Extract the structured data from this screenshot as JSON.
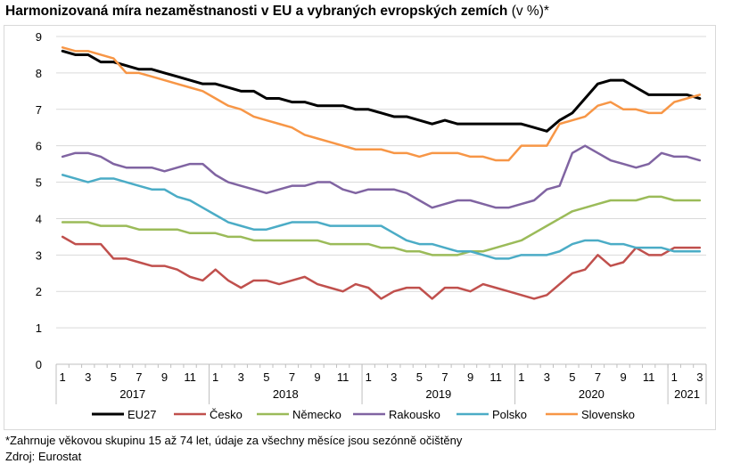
{
  "chart_title": {
    "main": "Harmonizovaná míra nezaměstnanosti v EU a vybraných evropských zemích",
    "unit": "(v %)*"
  },
  "footnote": "*Zahrnuje věkovou skupinu 15 až 74 let, údaje za všechny měsíce jsou sezónně očištěny",
  "source": "Zdroj: Eurostat",
  "chart_data": {
    "type": "line",
    "title": "Harmonizovaná míra nezaměstnanosti v EU a vybraných evropských zemích (v %)*",
    "xlabel": "",
    "ylabel": "",
    "ylim": [
      0,
      9
    ],
    "yticks": [
      0,
      1,
      2,
      3,
      4,
      5,
      6,
      7,
      8,
      9
    ],
    "grid": "horizontal",
    "legend_position": "bottom",
    "x": [
      "2017-01",
      "2017-02",
      "2017-03",
      "2017-04",
      "2017-05",
      "2017-06",
      "2017-07",
      "2017-08",
      "2017-09",
      "2017-10",
      "2017-11",
      "2017-12",
      "2018-01",
      "2018-02",
      "2018-03",
      "2018-04",
      "2018-05",
      "2018-06",
      "2018-07",
      "2018-08",
      "2018-09",
      "2018-10",
      "2018-11",
      "2018-12",
      "2019-01",
      "2019-02",
      "2019-03",
      "2019-04",
      "2019-05",
      "2019-06",
      "2019-07",
      "2019-08",
      "2019-09",
      "2019-10",
      "2019-11",
      "2019-12",
      "2020-01",
      "2020-02",
      "2020-03",
      "2020-04",
      "2020-05",
      "2020-06",
      "2020-07",
      "2020-08",
      "2020-09",
      "2020-10",
      "2020-11",
      "2020-12",
      "2021-01",
      "2021-02",
      "2021-03"
    ],
    "month_tick_labels": [
      "1",
      "3",
      "5",
      "7",
      "9",
      "11",
      "1",
      "3",
      "5",
      "7",
      "9",
      "11",
      "1",
      "3",
      "5",
      "7",
      "9",
      "11",
      "1",
      "3",
      "5",
      "7",
      "9",
      "11",
      "1",
      "3"
    ],
    "year_labels": [
      "2017",
      "2018",
      "2019",
      "2020",
      "2021"
    ],
    "series": [
      {
        "name": "EU27",
        "color": "#000000",
        "values": [
          8.6,
          8.5,
          8.5,
          8.3,
          8.3,
          8.2,
          8.1,
          8.1,
          8.0,
          7.9,
          7.8,
          7.7,
          7.7,
          7.6,
          7.5,
          7.5,
          7.3,
          7.3,
          7.2,
          7.2,
          7.1,
          7.1,
          7.1,
          7.0,
          7.0,
          6.9,
          6.8,
          6.8,
          6.7,
          6.6,
          6.7,
          6.6,
          6.6,
          6.6,
          6.6,
          6.6,
          6.6,
          6.5,
          6.4,
          6.7,
          6.9,
          7.3,
          7.7,
          7.8,
          7.8,
          7.6,
          7.4,
          7.4,
          7.4,
          7.4,
          7.3
        ]
      },
      {
        "name": "Česko",
        "color": "#c0504d",
        "values": [
          3.5,
          3.3,
          3.3,
          3.3,
          2.9,
          2.9,
          2.8,
          2.7,
          2.7,
          2.6,
          2.4,
          2.3,
          2.6,
          2.3,
          2.1,
          2.3,
          2.3,
          2.2,
          2.3,
          2.4,
          2.2,
          2.1,
          2.0,
          2.2,
          2.1,
          1.8,
          2.0,
          2.1,
          2.1,
          1.8,
          2.1,
          2.1,
          2.0,
          2.2,
          2.1,
          2.0,
          1.9,
          1.8,
          1.9,
          2.2,
          2.5,
          2.6,
          3.0,
          2.7,
          2.8,
          3.2,
          3.0,
          3.0,
          3.2,
          3.2,
          3.2
        ]
      },
      {
        "name": "Německo",
        "color": "#9bbb59",
        "values": [
          3.9,
          3.9,
          3.9,
          3.8,
          3.8,
          3.8,
          3.7,
          3.7,
          3.7,
          3.7,
          3.6,
          3.6,
          3.6,
          3.5,
          3.5,
          3.4,
          3.4,
          3.4,
          3.4,
          3.4,
          3.4,
          3.3,
          3.3,
          3.3,
          3.3,
          3.2,
          3.2,
          3.1,
          3.1,
          3.0,
          3.0,
          3.0,
          3.1,
          3.1,
          3.2,
          3.3,
          3.4,
          3.6,
          3.8,
          4.0,
          4.2,
          4.3,
          4.4,
          4.5,
          4.5,
          4.5,
          4.6,
          4.6,
          4.5,
          4.5,
          4.5
        ]
      },
      {
        "name": "Rakousko",
        "color": "#8064a2",
        "values": [
          5.7,
          5.8,
          5.8,
          5.7,
          5.5,
          5.4,
          5.4,
          5.4,
          5.3,
          5.4,
          5.5,
          5.5,
          5.2,
          5.0,
          4.9,
          4.8,
          4.7,
          4.8,
          4.9,
          4.9,
          5.0,
          5.0,
          4.8,
          4.7,
          4.8,
          4.8,
          4.8,
          4.7,
          4.5,
          4.3,
          4.4,
          4.5,
          4.5,
          4.4,
          4.3,
          4.3,
          4.4,
          4.5,
          4.8,
          4.9,
          5.8,
          6.0,
          5.8,
          5.6,
          5.5,
          5.4,
          5.5,
          5.8,
          5.7,
          5.7,
          5.6
        ]
      },
      {
        "name": "Polsko",
        "color": "#4bacc6",
        "values": [
          5.2,
          5.1,
          5.0,
          5.1,
          5.1,
          5.0,
          4.9,
          4.8,
          4.8,
          4.6,
          4.5,
          4.3,
          4.1,
          3.9,
          3.8,
          3.7,
          3.7,
          3.8,
          3.9,
          3.9,
          3.9,
          3.8,
          3.8,
          3.8,
          3.8,
          3.8,
          3.6,
          3.4,
          3.3,
          3.3,
          3.2,
          3.1,
          3.1,
          3.0,
          2.9,
          2.9,
          3.0,
          3.0,
          3.0,
          3.1,
          3.3,
          3.4,
          3.4,
          3.3,
          3.3,
          3.2,
          3.2,
          3.2,
          3.1,
          3.1,
          3.1
        ]
      },
      {
        "name": "Slovensko",
        "color": "#f79646",
        "values": [
          8.7,
          8.6,
          8.6,
          8.5,
          8.4,
          8.0,
          8.0,
          7.9,
          7.8,
          7.7,
          7.6,
          7.5,
          7.3,
          7.1,
          7.0,
          6.8,
          6.7,
          6.6,
          6.5,
          6.3,
          6.2,
          6.1,
          6.0,
          5.9,
          5.9,
          5.9,
          5.8,
          5.8,
          5.7,
          5.8,
          5.8,
          5.8,
          5.7,
          5.7,
          5.6,
          5.6,
          6.0,
          6.0,
          6.0,
          6.6,
          6.7,
          6.8,
          7.1,
          7.2,
          7.0,
          7.0,
          6.9,
          6.9,
          7.2,
          7.3,
          7.4
        ]
      }
    ]
  }
}
